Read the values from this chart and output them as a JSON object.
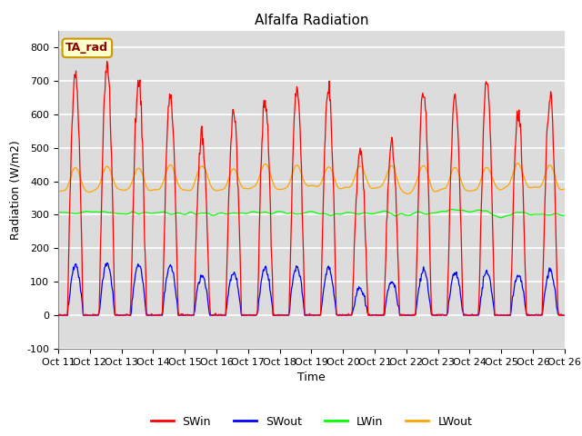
{
  "title": "Alfalfa Radiation",
  "xlabel": "Time",
  "ylabel": "Radiation (W/m2)",
  "ylim": [
    -100,
    850
  ],
  "yticks": [
    -100,
    0,
    100,
    200,
    300,
    400,
    500,
    600,
    700,
    800
  ],
  "xtick_labels": [
    "Oct 11",
    "Oct 12",
    "Oct 13",
    "Oct 14",
    "Oct 15",
    "Oct 16",
    "Oct 17",
    "Oct 18",
    "Oct 19",
    "Oct 20",
    "Oct 21",
    "Oct 22",
    "Oct 23",
    "Oct 24",
    "Oct 25",
    "Oct 26"
  ],
  "legend_entries": [
    "SWin",
    "SWout",
    "LWin",
    "LWout"
  ],
  "legend_colors": [
    "red",
    "blue",
    "green",
    "orange"
  ],
  "annotation_text": "TA_rad",
  "annotation_bg": "#FFFFCC",
  "annotation_border": "#CC9900",
  "background_color": "#DCDCDC",
  "SWin_peaks": [
    720,
    750,
    700,
    660,
    540,
    610,
    640,
    680,
    670,
    490,
    500,
    660,
    660,
    700,
    600,
    650
  ],
  "SWout_peaks": [
    150,
    155,
    150,
    150,
    120,
    130,
    140,
    145,
    140,
    80,
    100,
    135,
    125,
    130,
    120,
    130
  ],
  "LWin_base": 305,
  "LWout_base": 375,
  "num_days": 16,
  "title_fontsize": 11,
  "axis_fontsize": 9,
  "tick_fontsize": 8
}
